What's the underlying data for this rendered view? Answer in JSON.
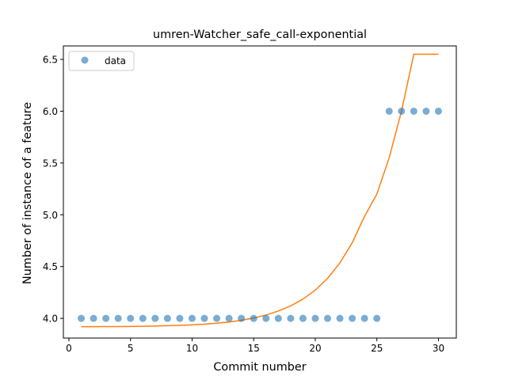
{
  "chart_data": {
    "type": "scatter",
    "title": "umren-Watcher_safe_call-exponential",
    "xlabel": "Commit number",
    "ylabel": "Number of instance of a feature",
    "xlim": [
      -0.45,
      31.45
    ],
    "ylim": [
      3.81,
      6.63
    ],
    "xticks": [
      0,
      5,
      10,
      15,
      20,
      25,
      30
    ],
    "xtick_labels": [
      "0",
      "5",
      "10",
      "15",
      "20",
      "25",
      "30"
    ],
    "yticks": [
      4.0,
      4.5,
      5.0,
      5.5,
      6.0,
      6.5
    ],
    "ytick_labels": [
      "4.0",
      "4.5",
      "5.0",
      "5.5",
      "6.0",
      "6.5"
    ],
    "grid": false,
    "legend": {
      "position": "top-left",
      "entries": [
        "data"
      ]
    },
    "series": [
      {
        "name": "data",
        "kind": "scatter",
        "color": "#1f77b4",
        "x": [
          1,
          2,
          3,
          4,
          5,
          6,
          7,
          8,
          9,
          10,
          11,
          12,
          13,
          14,
          15,
          16,
          17,
          18,
          19,
          20,
          21,
          22,
          23,
          24,
          25,
          26,
          27,
          28,
          29,
          30
        ],
        "y": [
          4,
          4,
          4,
          4,
          4,
          4,
          4,
          4,
          4,
          4,
          4,
          4,
          4,
          4,
          4,
          4,
          4,
          4,
          4,
          4,
          4,
          4,
          4,
          4,
          4,
          6,
          6,
          6,
          6,
          6
        ]
      },
      {
        "kind": "line",
        "color": "#ff7f0e",
        "x": [
          1,
          2,
          3,
          4,
          5,
          6,
          7,
          8,
          9,
          10,
          11,
          12,
          13,
          14,
          15,
          16,
          17,
          18,
          19,
          20,
          21,
          22,
          23,
          24,
          25,
          26,
          27,
          28,
          29,
          30
        ],
        "y": [
          3.92,
          3.92,
          3.921,
          3.921,
          3.922,
          3.924,
          3.926,
          3.929,
          3.932,
          3.937,
          3.944,
          3.953,
          3.965,
          3.981,
          4.003,
          4.032,
          4.07,
          4.12,
          4.186,
          4.272,
          4.386,
          4.535,
          4.73,
          4.985,
          5.2,
          5.55,
          6.0,
          6.55,
          6.55,
          6.55
        ]
      }
    ]
  }
}
